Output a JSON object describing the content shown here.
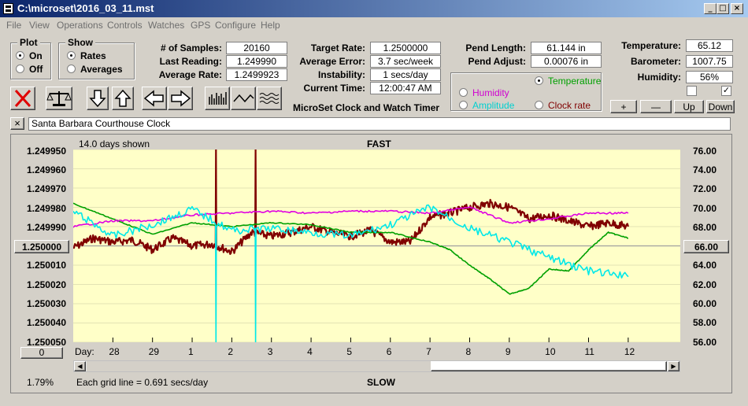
{
  "window": {
    "title": "C:\\microset\\2016_03_11.mst"
  },
  "menu": [
    "File",
    "View",
    "Operations",
    "Controls",
    "Watches",
    "GPS",
    "Configure",
    "Help"
  ],
  "plot_group": {
    "title": "Plot",
    "on": "On",
    "off": "Off",
    "selected": "On"
  },
  "show_group": {
    "title": "Show",
    "rates": "Rates",
    "averages": "Averages",
    "selected": "Rates"
  },
  "stats": {
    "samples_label": "# of Samples:",
    "samples": "20160",
    "last_reading_label": "Last Reading:",
    "last_reading": "1.249990",
    "average_rate_label": "Average Rate:",
    "average_rate": "1.2499923",
    "target_rate_label": "Target Rate:",
    "target_rate": "1.2500000",
    "average_error_label": "Average Error:",
    "average_error": "3.7 sec/week",
    "instability_label": "Instability:",
    "instability": "1 secs/day",
    "current_time_label": "Current Time:",
    "current_time": "12:00:47 AM",
    "app_name": "MicroSet Clock and Watch Timer"
  },
  "pendulum": {
    "length_label": "Pend Length:",
    "length": "61.144 in",
    "adjust_label": "Pend Adjust:",
    "adjust": "0.00076 in"
  },
  "overlay_group": {
    "temperature": "Temperature",
    "humidity": "Humidity",
    "amplitude": "Amplitude",
    "clock_rate": "Clock rate",
    "selected": "Temperature"
  },
  "environment": {
    "temperature_label": "Temperature:",
    "temperature": "65.12",
    "barometer_label": "Barometer:",
    "barometer": "1007.75",
    "humidity_label": "Humidity:",
    "humidity": "56%",
    "check1": false,
    "check2": true,
    "plus": "+",
    "minus": "—",
    "up": "Up",
    "down": "Down"
  },
  "toolbar_icons": [
    "cancel-x-icon",
    "balance-scale-icon",
    "arrow-down-icon",
    "arrow-up-icon",
    "arrow-left-icon",
    "arrow-right-icon",
    "bars-icon",
    "wave-icon",
    "ripple-icon"
  ],
  "clock": {
    "close": "×",
    "name": "Santa Barbara Courthouse Clock"
  },
  "plot": {
    "days_shown": "14.0 days shown",
    "fast": "FAST",
    "slow": "SLOW",
    "center_value": "1.250000",
    "right_center": "66.00",
    "day_label": "Day:",
    "offset_button": "0",
    "percent": "1.79%",
    "grid_note": "Each grid line = 0.691 secs/day",
    "colors": {
      "rate": "#800000",
      "temperature": "#00a000",
      "humidity": "#e000e0",
      "amplitude": "#00e8e8",
      "plot_bg": "#ffffc8"
    }
  },
  "chart_data": {
    "type": "line",
    "title": "",
    "xlabel": "Day:",
    "x_ticks": [
      "28",
      "29",
      "1",
      "2",
      "3",
      "4",
      "5",
      "6",
      "7",
      "8",
      "9",
      "10",
      "11",
      "12"
    ],
    "ylabel_left_ticks": [
      "1.249950",
      "1.249960",
      "1.249970",
      "1.249980",
      "1.249990",
      "1.250000",
      "1.250010",
      "1.250020",
      "1.250030",
      "1.250040",
      "1.250050"
    ],
    "ylabel_right_ticks": [
      "76.00",
      "74.00",
      "72.00",
      "70.00",
      "68.00",
      "66.00",
      "64.00",
      "62.00",
      "60.00",
      "58.00",
      "56.00"
    ],
    "ylim_left": [
      1.24995,
      1.25005
    ],
    "ylim_right": [
      56,
      76
    ],
    "xlim_days": [
      0,
      14.4
    ],
    "series": [
      {
        "name": "Clock rate",
        "axis": "left",
        "color": "#800000",
        "x": [
          0,
          0.5,
          1,
          1.5,
          2,
          2.5,
          3,
          3.5,
          4,
          4.5,
          5,
          5.5,
          6,
          6.5,
          7,
          7.5,
          8,
          8.5,
          9,
          9.5,
          10,
          10.5,
          11,
          11.5,
          12,
          12.5,
          13,
          13.5,
          14
        ],
        "y": [
          1.250001,
          1.249996,
          1.249998,
          1.249997,
          1.250002,
          1.249996,
          1.25,
          1.249999,
          1.250003,
          1.249993,
          1.249995,
          1.249993,
          1.24999,
          1.249993,
          1.249995,
          1.249992,
          1.249998,
          1.249998,
          1.249985,
          1.249983,
          1.24998,
          1.249978,
          1.24998,
          1.249986,
          1.249984,
          1.249987,
          1.24999,
          1.249988,
          1.24999
        ]
      },
      {
        "name": "Temperature",
        "axis": "right",
        "color": "#00a000",
        "x": [
          0,
          1,
          2,
          3,
          4,
          5,
          6,
          7,
          8,
          9,
          9.5,
          10,
          10.5,
          11,
          11.5,
          12,
          12.5,
          13,
          13.5,
          14
        ],
        "y": [
          70.4,
          68.8,
          67.2,
          68.4,
          68.0,
          68.4,
          68.2,
          67.4,
          67.4,
          66.4,
          65.6,
          64.0,
          62.6,
          61.0,
          61.6,
          63.6,
          63.4,
          65.6,
          67.4,
          66.8
        ]
      },
      {
        "name": "Humidity",
        "axis": "left",
        "color": "#e000e0",
        "x": [
          0,
          1,
          2,
          3,
          4,
          5,
          6,
          7,
          8,
          9,
          10,
          11,
          12,
          13,
          14
        ],
        "y": [
          1.24999,
          1.249987,
          1.249987,
          1.249984,
          1.249983,
          1.249982,
          1.249983,
          1.249982,
          1.249982,
          1.249983,
          1.24998,
          1.249988,
          1.249986,
          1.249983,
          1.249983
        ]
      },
      {
        "name": "Amplitude",
        "axis": "right",
        "color": "#00e8e8",
        "x": [
          0,
          1,
          2,
          3,
          4,
          5,
          6,
          7,
          8,
          9,
          10,
          11,
          12,
          13,
          14
        ],
        "y": [
          69.6,
          67.0,
          68.2,
          69.8,
          67.6,
          67.8,
          67.4,
          67.0,
          68.2,
          70.0,
          67.8,
          66.4,
          64.8,
          63.4,
          62.8
        ]
      }
    ]
  }
}
